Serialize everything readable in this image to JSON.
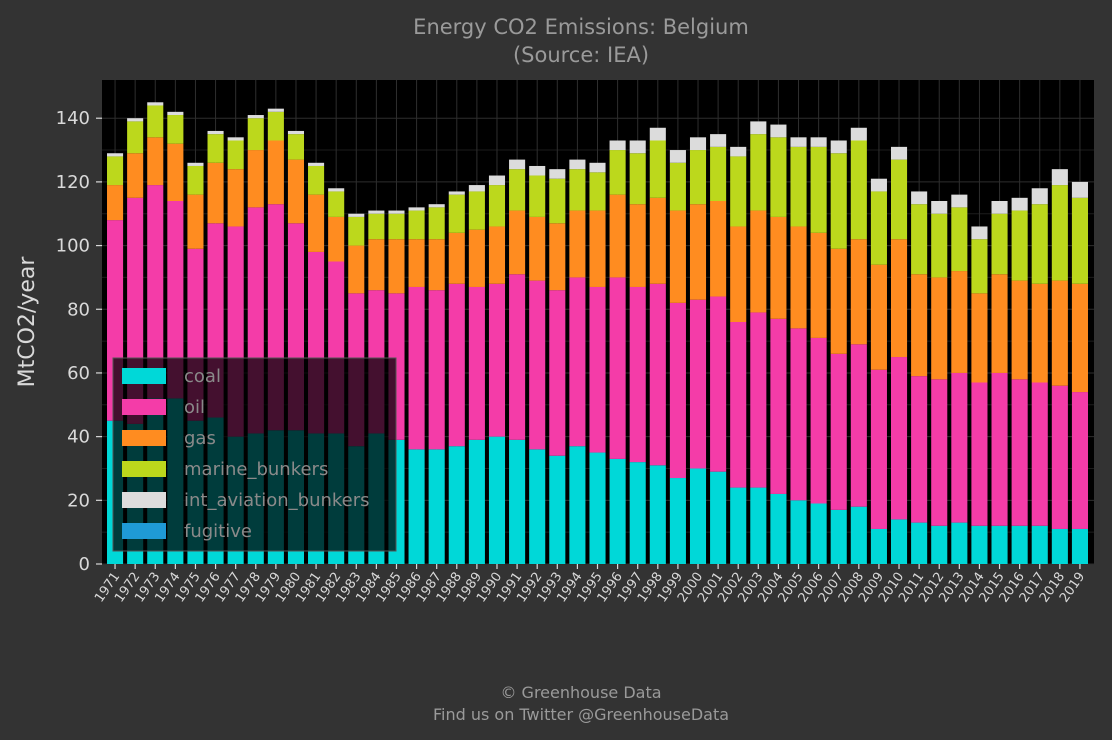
{
  "chart_data": {
    "type": "bar",
    "stacked": true,
    "title": "Energy CO2 Emissions: Belgium",
    "subtitle": "(Source: IEA)",
    "ylabel": "MtCO2/year",
    "xlabel": "",
    "ylim": [
      0,
      152
    ],
    "yticks": [
      0,
      20,
      40,
      60,
      80,
      100,
      120,
      140
    ],
    "grid": true,
    "legend_position": "bottom-left",
    "categories": [
      "1971",
      "1972",
      "1973",
      "1974",
      "1975",
      "1976",
      "1977",
      "1978",
      "1979",
      "1980",
      "1981",
      "1982",
      "1983",
      "1984",
      "1985",
      "1986",
      "1987",
      "1988",
      "1989",
      "1990",
      "1991",
      "1992",
      "1993",
      "1994",
      "1995",
      "1996",
      "1997",
      "1998",
      "1999",
      "2000",
      "2001",
      "2002",
      "2003",
      "2004",
      "2005",
      "2006",
      "2007",
      "2008",
      "2009",
      "2010",
      "2011",
      "2012",
      "2013",
      "2014",
      "2015",
      "2016",
      "2017",
      "2018",
      "2019"
    ],
    "series": [
      {
        "name": "coal",
        "color": "#00d8d8",
        "values": [
          45,
          44,
          52,
          52,
          45,
          46,
          40,
          41,
          42,
          42,
          41,
          41,
          37,
          41,
          39,
          36,
          36,
          37,
          39,
          40,
          39,
          36,
          34,
          37,
          35,
          33,
          32,
          31,
          27,
          30,
          29,
          24,
          24,
          22,
          20,
          19,
          17,
          18,
          11,
          14,
          13,
          12,
          13,
          12,
          12,
          12,
          12,
          11,
          11
        ]
      },
      {
        "name": "oil",
        "color": "#f43ca8",
        "values": [
          63,
          71,
          67,
          62,
          54,
          61,
          66,
          71,
          71,
          65,
          57,
          54,
          48,
          45,
          46,
          51,
          50,
          51,
          48,
          48,
          52,
          53,
          52,
          53,
          52,
          57,
          55,
          57,
          55,
          53,
          55,
          52,
          55,
          55,
          54,
          52,
          49,
          51,
          50,
          51,
          46,
          46,
          47,
          45,
          48,
          46,
          45,
          45,
          43
        ]
      },
      {
        "name": "gas",
        "color": "#ff8c20",
        "values": [
          11,
          14,
          15,
          18,
          17,
          19,
          18,
          18,
          20,
          20,
          18,
          14,
          15,
          16,
          17,
          15,
          16,
          16,
          18,
          18,
          20,
          20,
          21,
          21,
          24,
          26,
          26,
          27,
          29,
          30,
          30,
          30,
          32,
          32,
          32,
          33,
          33,
          33,
          33,
          37,
          32,
          32,
          32,
          28,
          31,
          31,
          31,
          33,
          34
        ]
      },
      {
        "name": "marine_bunkers",
        "color": "#bcd81c",
        "values": [
          9,
          10,
          10,
          9,
          9,
          9,
          9,
          10,
          9,
          8,
          9,
          8,
          9,
          8,
          8,
          9,
          10,
          12,
          12,
          13,
          13,
          13,
          14,
          13,
          12,
          14,
          16,
          18,
          15,
          17,
          17,
          22,
          24,
          25,
          25,
          27,
          30,
          31,
          23,
          25,
          22,
          20,
          20,
          17,
          19,
          22,
          25,
          30,
          27
        ]
      },
      {
        "name": "int_aviation_bunkers",
        "color": "#dcdcdc",
        "values": [
          1,
          1,
          1,
          1,
          1,
          1,
          1,
          1,
          1,
          1,
          1,
          1,
          1,
          1,
          1,
          1,
          1,
          1,
          2,
          3,
          3,
          3,
          3,
          3,
          3,
          3,
          4,
          4,
          4,
          4,
          4,
          3,
          4,
          4,
          3,
          3,
          4,
          4,
          4,
          4,
          4,
          4,
          4,
          4,
          4,
          4,
          5,
          5,
          5
        ]
      },
      {
        "name": "fugitive",
        "color": "#1f9ad6",
        "values": [
          0,
          0,
          0,
          0,
          0,
          0,
          0,
          0,
          0,
          0,
          0,
          0,
          0,
          0,
          0,
          0,
          0,
          0,
          0,
          0,
          0,
          0,
          0,
          0,
          0,
          0,
          0,
          0,
          0,
          0,
          0,
          0,
          0,
          0,
          0,
          0,
          0,
          0,
          0,
          0,
          0,
          0,
          0,
          0,
          0,
          0,
          0,
          0,
          0
        ]
      }
    ]
  },
  "credits": {
    "line1": "© Greenhouse Data",
    "line2": "Find us on Twitter @GreenhouseData"
  }
}
